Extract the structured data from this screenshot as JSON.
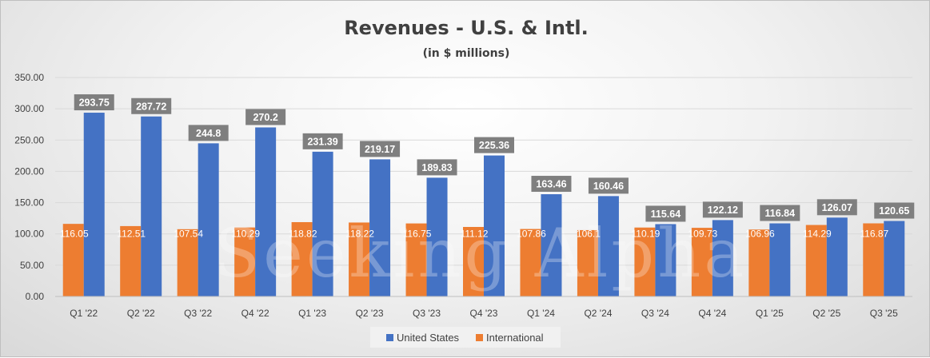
{
  "chart_data": {
    "type": "bar",
    "title": "Revenues - U.S. & Intl.",
    "subtitle": "(in $ millions)",
    "categories": [
      "Q1 '22",
      "Q2 '22",
      "Q3 '22",
      "Q4 '22",
      "Q1 '23",
      "Q2 '23",
      "Q3 '23",
      "Q4 '23",
      "Q1 '24",
      "Q2 '24",
      "Q3 '24",
      "Q4 '24",
      "Q1 '25",
      "Q2 '25",
      "Q3 '25"
    ],
    "series": [
      {
        "name": "International",
        "color": "#ed7d31",
        "values": [
          116.05,
          112.51,
          107.54,
          110.29,
          118.82,
          118.22,
          116.75,
          111.12,
          107.86,
          106.1,
          110.19,
          109.73,
          106.96,
          114.29,
          116.87
        ],
        "labels": [
          "116.05",
          "112.51",
          "107.54",
          "110.29",
          "118.82",
          "118.22",
          "116.75",
          "111.12",
          "107.86",
          "106.1",
          "110.19",
          "109.73",
          "106.96",
          "114.29",
          "116.87"
        ]
      },
      {
        "name": "United States",
        "color": "#4472c4",
        "values": [
          293.75,
          287.72,
          244.8,
          270.2,
          231.39,
          219.17,
          189.83,
          225.36,
          163.46,
          160.46,
          115.64,
          122.12,
          116.84,
          126.07,
          120.65
        ],
        "labels": [
          "293.75",
          "287.72",
          "244.8",
          "270.2",
          "231.39",
          "219.17",
          "189.83",
          "225.36",
          "163.46",
          "160.46",
          "115.64",
          "122.12",
          "116.84",
          "126.07",
          "120.65"
        ]
      }
    ],
    "y_ticks": [
      "0.00",
      "50.00",
      "100.00",
      "150.00",
      "200.00",
      "250.00",
      "300.00",
      "350.00"
    ],
    "ylim": [
      0,
      350
    ],
    "grid": true,
    "legend": {
      "placement": "bottom",
      "items": [
        "United States",
        "International"
      ]
    },
    "watermark": "Seeking Alpha"
  }
}
